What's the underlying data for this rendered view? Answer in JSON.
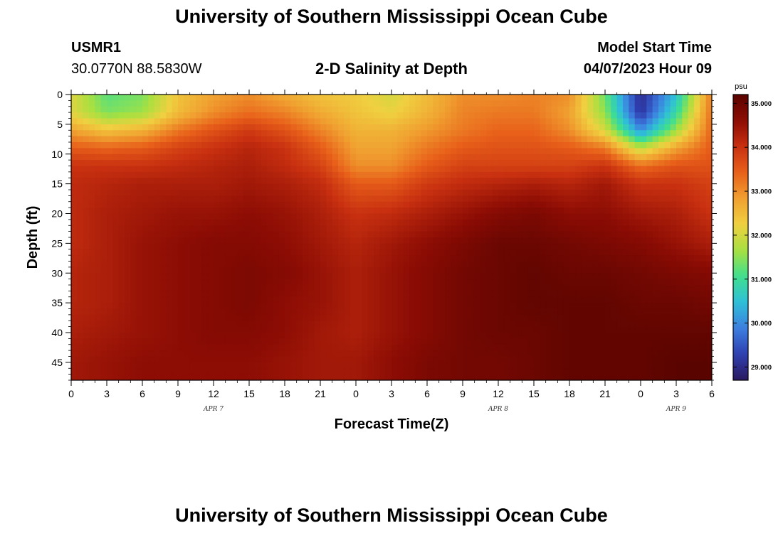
{
  "header": {
    "title": "University of Southern Mississippi Ocean Cube",
    "station": "USMR1",
    "coords": "30.0770N  88.5830W",
    "subtitle": "2-D Salinity at Depth",
    "model_start_label": "Model Start Time",
    "model_start_value": "04/07/2023 Hour 09"
  },
  "footer": {
    "title": "University of Southern Mississippi Ocean Cube"
  },
  "colors": {
    "scale": [
      "#2a1a5e",
      "#2f3fb0",
      "#3d7fe0",
      "#2fbfd8",
      "#3fdf8f",
      "#a8e040",
      "#f0d040",
      "#f0a030",
      "#e8601a",
      "#c83010",
      "#8c0c04",
      "#5a0400"
    ]
  },
  "chart_data": {
    "type": "heatmap",
    "title": "2-D Salinity at Depth",
    "xlabel": "Forecast Time(Z)",
    "ylabel": "Depth (ft)",
    "x_tick_labels": [
      "0",
      "3",
      "6",
      "9",
      "12",
      "15",
      "18",
      "21",
      "0",
      "3",
      "6",
      "9",
      "12",
      "15",
      "18",
      "21",
      "0",
      "3",
      "6"
    ],
    "x_range_hours": [
      0,
      54
    ],
    "day_labels": [
      {
        "label": "APR 7",
        "hour": 12
      },
      {
        "label": "APR 8",
        "hour": 36
      },
      {
        "label": "APR 9",
        "hour": 51
      }
    ],
    "y_ticks": [
      0,
      5,
      10,
      15,
      20,
      25,
      30,
      35,
      40,
      45
    ],
    "ylim": [
      0,
      48
    ],
    "y_inverted": true,
    "colorbar": {
      "unit": "psu",
      "range": [
        28.7,
        35.2
      ],
      "ticks": [
        29.0,
        30.0,
        31.0,
        32.0,
        33.0,
        34.0,
        35.0
      ],
      "tick_labels": [
        "29.000",
        "30.000",
        "31.000",
        "32.000",
        "33.000",
        "34.000",
        "35.000"
      ]
    },
    "hours": [
      0,
      3,
      6,
      9,
      12,
      15,
      18,
      21,
      24,
      27,
      30,
      33,
      36,
      39,
      42,
      45,
      48,
      51,
      54
    ],
    "depths": [
      0,
      3,
      6,
      9,
      12,
      15,
      20,
      25,
      30,
      35,
      40,
      45,
      48
    ],
    "values": [
      [
        32.1,
        31.2,
        31.4,
        32.4,
        32.8,
        33.0,
        32.7,
        32.4,
        32.3,
        32.0,
        32.5,
        33.0,
        33.0,
        33.1,
        33.0,
        31.3,
        29.0,
        30.5,
        33.2
      ],
      [
        32.1,
        31.4,
        31.6,
        32.5,
        33.0,
        33.3,
        33.1,
        32.7,
        32.4,
        32.2,
        32.6,
        33.1,
        33.2,
        33.2,
        32.8,
        31.5,
        29.1,
        30.9,
        33.3
      ],
      [
        32.8,
        32.4,
        32.6,
        33.2,
        33.6,
        33.9,
        33.6,
        33.1,
        32.6,
        32.6,
        32.9,
        33.2,
        33.4,
        33.4,
        33.0,
        32.0,
        30.0,
        31.6,
        33.4
      ],
      [
        33.5,
        33.4,
        33.5,
        33.8,
        34.0,
        34.2,
        34.0,
        33.5,
        32.8,
        32.8,
        33.2,
        33.5,
        33.6,
        33.6,
        33.5,
        33.2,
        31.8,
        32.8,
        33.5
      ],
      [
        34.0,
        34.0,
        34.0,
        34.1,
        34.2,
        34.3,
        34.1,
        33.8,
        33.0,
        33.0,
        33.5,
        33.8,
        33.8,
        33.8,
        33.8,
        34.0,
        33.3,
        33.6,
        33.6
      ],
      [
        34.1,
        34.2,
        34.3,
        34.3,
        34.3,
        34.4,
        34.3,
        34.1,
        33.5,
        33.5,
        33.9,
        34.1,
        34.2,
        34.3,
        34.2,
        34.4,
        34.0,
        34.0,
        33.8
      ],
      [
        34.1,
        34.3,
        34.4,
        34.5,
        34.5,
        34.6,
        34.5,
        34.3,
        34.0,
        34.1,
        34.3,
        34.5,
        34.7,
        34.8,
        34.6,
        34.6,
        34.4,
        34.3,
        34.0
      ],
      [
        34.1,
        34.3,
        34.5,
        34.6,
        34.7,
        34.7,
        34.6,
        34.4,
        34.2,
        34.4,
        34.6,
        34.8,
        35.0,
        35.0,
        34.9,
        34.8,
        34.7,
        34.5,
        34.3
      ],
      [
        34.2,
        34.3,
        34.5,
        34.6,
        34.7,
        34.8,
        34.7,
        34.5,
        34.3,
        34.5,
        34.7,
        34.9,
        35.0,
        35.1,
        35.0,
        35.0,
        34.9,
        34.8,
        34.7
      ],
      [
        34.2,
        34.3,
        34.5,
        34.6,
        34.7,
        34.8,
        34.6,
        34.5,
        34.3,
        34.5,
        34.7,
        34.9,
        35.0,
        35.1,
        35.1,
        35.1,
        35.0,
        35.0,
        34.9
      ],
      [
        34.3,
        34.4,
        34.5,
        34.6,
        34.7,
        34.7,
        34.6,
        34.4,
        34.3,
        34.5,
        34.7,
        34.9,
        35.0,
        35.0,
        35.1,
        35.1,
        35.1,
        35.1,
        35.1
      ],
      [
        34.4,
        34.5,
        34.6,
        34.6,
        34.6,
        34.6,
        34.5,
        34.4,
        34.4,
        34.6,
        34.8,
        34.9,
        34.9,
        35.0,
        35.1,
        35.1,
        35.1,
        35.2,
        35.2
      ],
      [
        34.4,
        34.5,
        34.6,
        34.6,
        34.6,
        34.6,
        34.5,
        34.4,
        34.4,
        34.6,
        34.8,
        34.9,
        34.9,
        35.0,
        35.1,
        35.1,
        35.1,
        35.2,
        35.2
      ]
    ]
  }
}
